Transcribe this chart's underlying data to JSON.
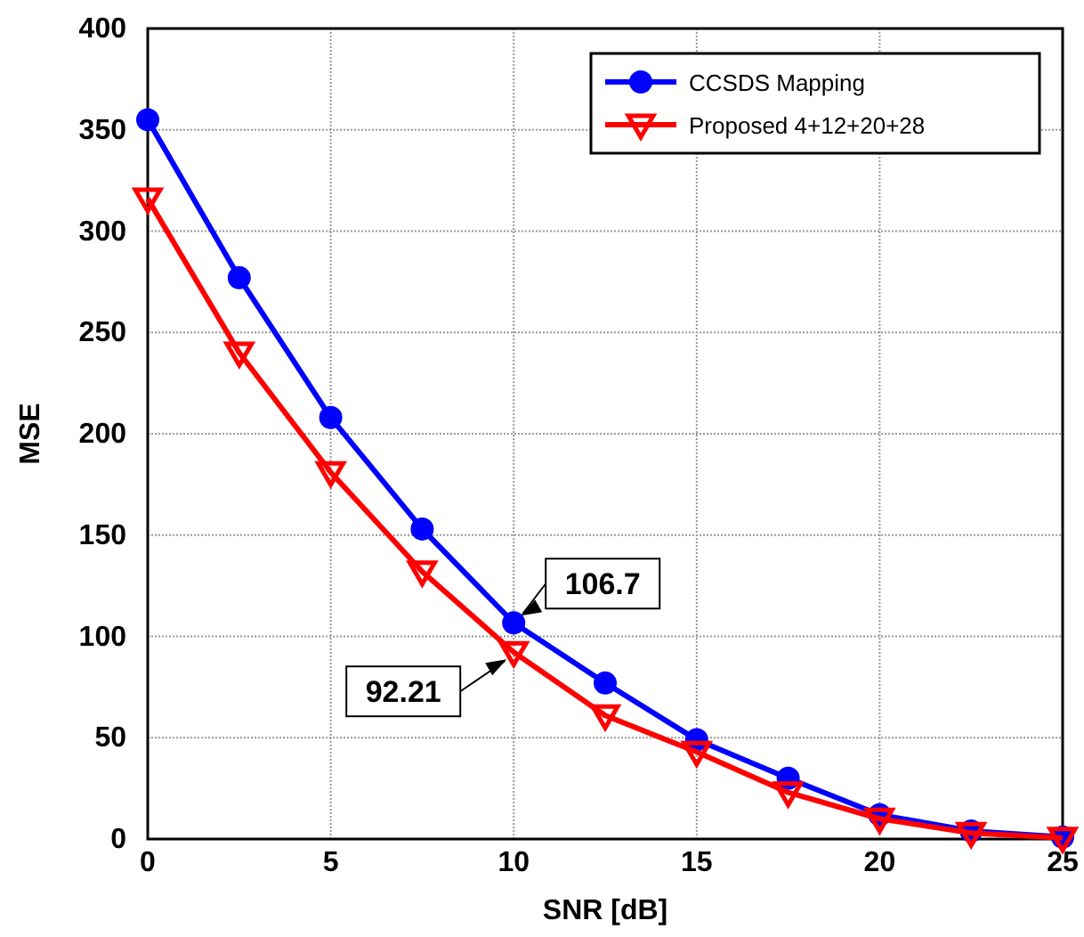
{
  "chart_data": {
    "type": "line",
    "xlabel": "SNR [dB]",
    "ylabel": "MSE",
    "x": [
      0,
      2.5,
      5,
      7.5,
      10,
      12.5,
      15,
      17.5,
      20,
      22.5,
      25
    ],
    "series": [
      {
        "name": "CCSDS Mapping",
        "color": "#0000ff",
        "marker": "circle",
        "values": [
          355,
          277,
          208,
          153,
          106.7,
          77,
          49,
          30,
          12,
          4,
          1
        ]
      },
      {
        "name": "Proposed 4+12+20+28",
        "color": "#ff0000",
        "marker": "triangle",
        "values": [
          316,
          240,
          181,
          132,
          92.21,
          61,
          43,
          23,
          10,
          3,
          0.5
        ]
      }
    ],
    "xlim": [
      0,
      25
    ],
    "xticks": [
      0,
      5,
      10,
      15,
      20,
      25
    ],
    "ylim": [
      0,
      400
    ],
    "yticks": [
      0,
      50,
      100,
      150,
      200,
      250,
      300,
      350,
      400
    ],
    "grid": true,
    "legend": "top right",
    "annotations": [
      {
        "text": "106.7",
        "x": 10,
        "y": 106.7
      },
      {
        "text": "92.21",
        "x": 10,
        "y": 92.21
      }
    ]
  }
}
